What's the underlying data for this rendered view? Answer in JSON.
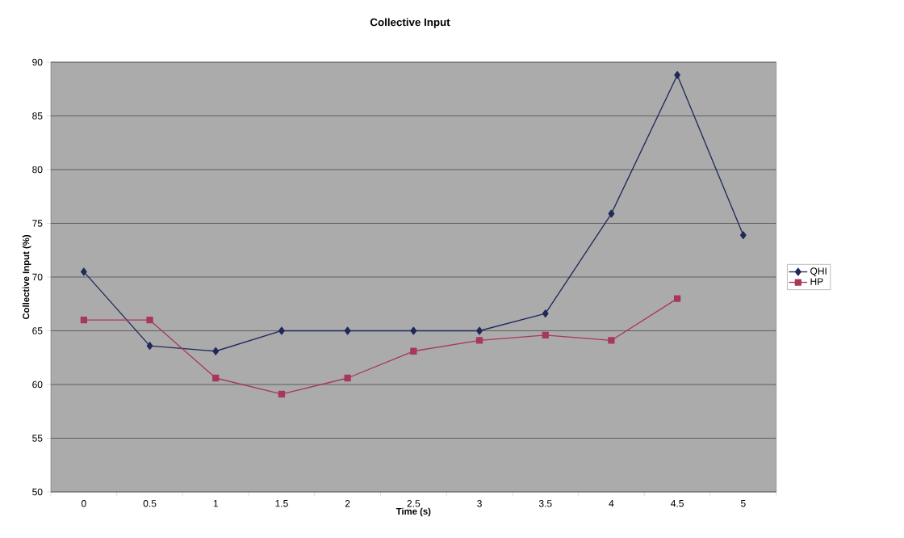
{
  "chart_data": {
    "type": "line",
    "title": "Collective Input",
    "xlabel": "Time (s)",
    "ylabel": "Collective Input (%)",
    "categories": [
      "0",
      "0.5",
      "1",
      "1.5",
      "2",
      "2.5",
      "3",
      "3.5",
      "4",
      "4.5",
      "5"
    ],
    "series": [
      {
        "name": "QHI",
        "color": "#1f2a5a",
        "marker": "diamond",
        "values": [
          70.5,
          63.6,
          63.1,
          65,
          65,
          65,
          65,
          66.6,
          75.9,
          88.8,
          73.9
        ]
      },
      {
        "name": "HP",
        "color": "#a8385a",
        "marker": "square",
        "values": [
          66,
          66,
          60.6,
          59.1,
          60.6,
          63.1,
          64.1,
          64.6,
          64.1,
          68.0,
          null
        ]
      }
    ],
    "ylim": [
      50,
      90
    ],
    "yticks": [
      50,
      55,
      60,
      65,
      70,
      75,
      80,
      85,
      90
    ],
    "grid": "y",
    "legend": "right",
    "line_style": "solid"
  }
}
